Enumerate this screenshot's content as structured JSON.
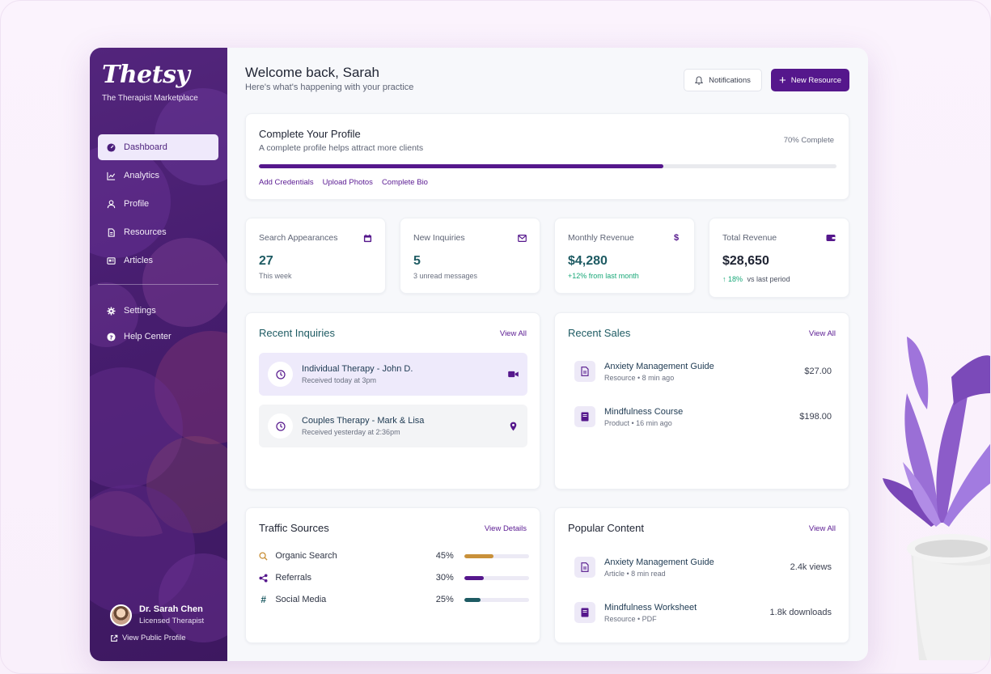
{
  "brand": {
    "logo": "Thetsy",
    "tagline": "The Therapist Marketplace"
  },
  "sidebar": {
    "items": [
      {
        "label": "Dashboard",
        "icon": "dashboard-icon",
        "active": true
      },
      {
        "label": "Analytics",
        "icon": "analytics-icon"
      },
      {
        "label": "Profile",
        "icon": "user-icon"
      },
      {
        "label": "Resources",
        "icon": "document-icon"
      },
      {
        "label": "Articles",
        "icon": "newspaper-icon"
      }
    ],
    "secondary": [
      {
        "label": "Settings",
        "icon": "gear-icon"
      },
      {
        "label": "Help Center",
        "icon": "help-icon"
      }
    ],
    "user": {
      "name": "Dr. Sarah Chen",
      "role": "Licensed Therapist",
      "link": "View Public Profile"
    }
  },
  "header": {
    "title": "Welcome back, Sarah",
    "subtitle": "Here's what's happening with your practice",
    "notifications_label": "Notifications",
    "new_resource_label": "New Resource"
  },
  "profile": {
    "title": "Complete Your Profile",
    "description": "A complete profile helps attract more clients",
    "percent_label": "70% Complete",
    "progress": 0.7,
    "links": [
      "Add Credentials",
      "Upload Photos",
      "Complete Bio"
    ]
  },
  "stats": [
    {
      "label": "Search Appearances",
      "value": "27",
      "sub": "This week",
      "icon": "calendar-icon"
    },
    {
      "label": "New Inquiries",
      "value": "5",
      "sub": "3 unread messages",
      "icon": "mail-icon"
    },
    {
      "label": "Monthly Revenue",
      "value": "$4,280",
      "sub": "+12% from last month",
      "icon": "dollar-icon"
    },
    {
      "label": "Total Revenue",
      "value": "$28,650",
      "sub_pct": "18%",
      "sub_text": "vs last period",
      "icon": "wallet-icon"
    }
  ],
  "inquiries": {
    "title": "Recent Inquiries",
    "link": "View All",
    "items": [
      {
        "title": "Individual Therapy - John D.",
        "sub": "Received today at 3pm",
        "icon": "video-icon"
      },
      {
        "title": "Couples Therapy - Mark & Lisa",
        "sub": "Received yesterday at 2:36pm",
        "icon": "location-pin-icon"
      }
    ]
  },
  "sales": {
    "title": "Recent Sales",
    "link": "View All",
    "items": [
      {
        "title": "Anxiety Management Guide",
        "sub": "Resource • 8 min ago",
        "amount": "$27.00"
      },
      {
        "title": "Mindfulness Course",
        "sub": "Product • 16 min ago",
        "amount": "$198.00"
      }
    ]
  },
  "traffic": {
    "title": "Traffic Sources",
    "link": "View Details",
    "items": [
      {
        "name": "Organic Search",
        "pct_label": "45%",
        "pct": 0.45,
        "color": "#c9913a",
        "icon": "search-icon"
      },
      {
        "name": "Referrals",
        "pct_label": "30%",
        "pct": 0.3,
        "color": "#55178c",
        "icon": "share-icon"
      },
      {
        "name": "Social Media",
        "pct_label": "25%",
        "pct": 0.25,
        "color": "#1e5b63",
        "icon": "hashtag-icon"
      }
    ]
  },
  "popular": {
    "title": "Popular Content",
    "link": "View All",
    "items": [
      {
        "title": "Anxiety Management Guide",
        "sub": "Article • 8 min read",
        "metric": "2.4k views"
      },
      {
        "title": "Mindfulness Worksheet",
        "sub": "Resource • PDF",
        "metric": "1.8k downloads"
      }
    ]
  },
  "colors": {
    "primary": "#55178c",
    "teal": "#1e5b63",
    "green": "#18a878"
  }
}
